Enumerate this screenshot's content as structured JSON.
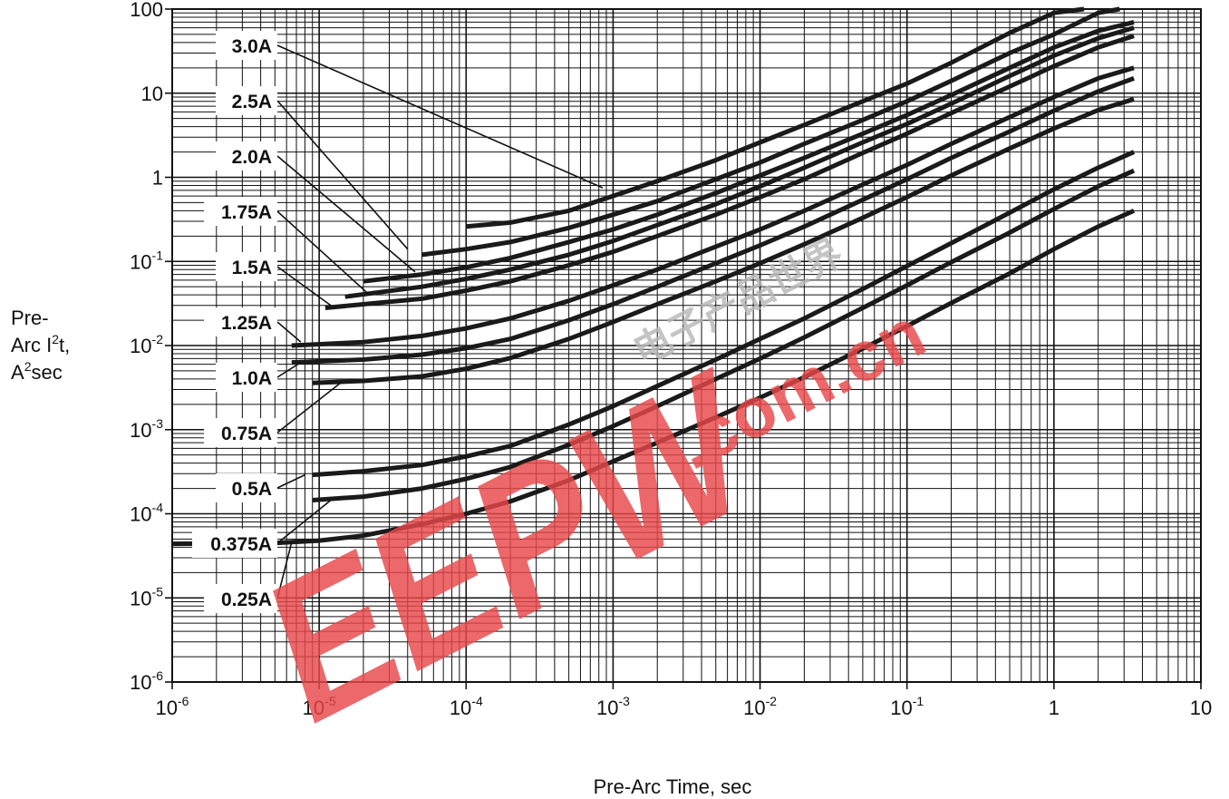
{
  "chart_data": {
    "type": "line",
    "xlabel": "Pre-Arc Time, sec",
    "ylabel_lines": [
      "Pre-",
      "Arc I",
      "2",
      "t,",
      "A",
      "2",
      "sec"
    ],
    "x_scale": "log",
    "y_scale": "log",
    "xlim": [
      1e-06,
      10
    ],
    "ylim": [
      1e-06,
      100
    ],
    "grid": true,
    "x_ticks": [
      {
        "base": "10",
        "exp": "-6",
        "value": 1e-06
      },
      {
        "base": "10",
        "exp": "-5",
        "value": 1e-05
      },
      {
        "base": "10",
        "exp": "-4",
        "value": 0.0001
      },
      {
        "base": "10",
        "exp": "-3",
        "value": 0.001
      },
      {
        "base": "10",
        "exp": "-2",
        "value": 0.01
      },
      {
        "base": "10",
        "exp": "-1",
        "value": 0.1
      },
      {
        "base": "1",
        "exp": "",
        "value": 1
      },
      {
        "base": "10",
        "exp": "",
        "value": 10
      }
    ],
    "y_ticks": [
      {
        "base": "10",
        "exp": "-6",
        "value": 1e-06
      },
      {
        "base": "10",
        "exp": "-5",
        "value": 1e-05
      },
      {
        "base": "10",
        "exp": "-4",
        "value": 0.0001
      },
      {
        "base": "10",
        "exp": "-3",
        "value": 0.001
      },
      {
        "base": "10",
        "exp": "-2",
        "value": 0.01
      },
      {
        "base": "10",
        "exp": "-1",
        "value": 0.1
      },
      {
        "base": "1",
        "exp": "",
        "value": 1
      },
      {
        "base": "10",
        "exp": "",
        "value": 10
      },
      {
        "base": "100",
        "exp": "",
        "value": 100
      }
    ],
    "series": [
      {
        "name": "3.0A",
        "label_anchor": [
          0.00085,
          0.75
        ],
        "x": [
          0.0001,
          0.0002,
          0.0005,
          0.001,
          0.002,
          0.005,
          0.01,
          0.02,
          0.05,
          0.1,
          0.2,
          0.5,
          1,
          1.6
        ],
        "y": [
          0.26,
          0.29,
          0.4,
          0.6,
          0.9,
          1.6,
          2.6,
          4.2,
          8,
          13,
          23,
          52,
          90,
          100
        ]
      },
      {
        "name": "2.5A",
        "label_anchor": [
          4e-05,
          0.14
        ],
        "x": [
          5e-05,
          0.0001,
          0.0002,
          0.0005,
          0.001,
          0.002,
          0.005,
          0.01,
          0.02,
          0.05,
          0.1,
          0.2,
          0.5,
          1,
          2,
          2.8
        ],
        "y": [
          0.12,
          0.14,
          0.17,
          0.25,
          0.36,
          0.52,
          0.95,
          1.5,
          2.5,
          4.8,
          8,
          14,
          30,
          50,
          90,
          100
        ]
      },
      {
        "name": "2.0A",
        "label_anchor": [
          4.5e-05,
          0.075
        ],
        "x": [
          2e-05,
          5e-05,
          0.0001,
          0.0002,
          0.0005,
          0.001,
          0.002,
          0.005,
          0.01,
          0.02,
          0.05,
          0.1,
          0.2,
          0.5,
          1,
          2,
          3.5
        ],
        "y": [
          0.058,
          0.07,
          0.085,
          0.11,
          0.17,
          0.24,
          0.36,
          0.65,
          1.05,
          1.7,
          3.3,
          5.5,
          9.5,
          20,
          35,
          55,
          70
        ]
      },
      {
        "name": "1.75A",
        "label_anchor": [
          2.2e-05,
          0.04
        ],
        "x": [
          1.5e-05,
          5e-05,
          0.0001,
          0.0002,
          0.0005,
          0.001,
          0.002,
          0.005,
          0.01,
          0.02,
          0.05,
          0.1,
          0.2,
          0.5,
          1,
          2,
          3.5
        ],
        "y": [
          0.038,
          0.05,
          0.062,
          0.08,
          0.12,
          0.175,
          0.27,
          0.48,
          0.78,
          1.3,
          2.6,
          4.3,
          7.5,
          16,
          28,
          45,
          60
        ]
      },
      {
        "name": "1.5A",
        "label_anchor": [
          1.2e-05,
          0.03
        ],
        "x": [
          1.1e-05,
          5e-05,
          0.0001,
          0.0002,
          0.0005,
          0.001,
          0.002,
          0.005,
          0.01,
          0.02,
          0.05,
          0.1,
          0.2,
          0.5,
          1,
          2,
          3.5
        ],
        "y": [
          0.028,
          0.036,
          0.045,
          0.058,
          0.09,
          0.13,
          0.2,
          0.36,
          0.58,
          0.95,
          1.95,
          3.3,
          5.8,
          12,
          21,
          35,
          48
        ]
      },
      {
        "name": "1.25A",
        "label_anchor": [
          7.5e-06,
          0.011
        ],
        "x": [
          6.5e-06,
          2e-05,
          5e-05,
          0.0001,
          0.0002,
          0.0005,
          0.001,
          0.002,
          0.005,
          0.01,
          0.02,
          0.05,
          0.1,
          0.2,
          0.5,
          1,
          2,
          3.5
        ],
        "y": [
          0.01,
          0.011,
          0.013,
          0.016,
          0.021,
          0.034,
          0.052,
          0.08,
          0.15,
          0.24,
          0.4,
          0.82,
          1.4,
          2.5,
          5.2,
          9,
          15,
          20
        ]
      },
      {
        "name": "1.0A",
        "label_anchor": [
          7.5e-06,
          0.0063
        ],
        "x": [
          6.5e-06,
          2e-05,
          5e-05,
          0.0001,
          0.0002,
          0.0005,
          0.001,
          0.002,
          0.005,
          0.01,
          0.02,
          0.05,
          0.1,
          0.2,
          0.5,
          1,
          2,
          3.5
        ],
        "y": [
          0.0063,
          0.0068,
          0.0078,
          0.0093,
          0.012,
          0.02,
          0.031,
          0.05,
          0.095,
          0.155,
          0.26,
          0.54,
          0.95,
          1.7,
          3.5,
          6.2,
          10.5,
          15
        ]
      },
      {
        "name": "0.75A",
        "label_anchor": [
          1.4e-05,
          0.0036
        ],
        "x": [
          9e-06,
          2e-05,
          5e-05,
          0.0001,
          0.0002,
          0.0005,
          0.001,
          0.002,
          0.005,
          0.01,
          0.02,
          0.05,
          0.1,
          0.2,
          0.5,
          1,
          2,
          3.5
        ],
        "y": [
          0.0036,
          0.0038,
          0.0043,
          0.0053,
          0.0071,
          0.012,
          0.019,
          0.031,
          0.058,
          0.095,
          0.16,
          0.33,
          0.58,
          1.05,
          2.2,
          3.8,
          6.3,
          8.5
        ]
      },
      {
        "name": "0.5A",
        "label_anchor": [
          8e-06,
          0.00029
        ],
        "x": [
          9e-06,
          2e-05,
          5e-05,
          0.0001,
          0.0002,
          0.0005,
          0.001,
          0.002,
          0.005,
          0.01,
          0.02,
          0.05,
          0.1,
          0.2,
          0.5,
          1,
          2,
          3.5
        ],
        "y": [
          0.00029,
          0.00032,
          0.00038,
          0.00048,
          0.00064,
          0.00115,
          0.0019,
          0.0033,
          0.0068,
          0.012,
          0.021,
          0.047,
          0.088,
          0.165,
          0.38,
          0.72,
          1.3,
          2
        ]
      },
      {
        "name": "0.375A",
        "label_anchor": [
          1.2e-05,
          0.000145
        ],
        "x": [
          9e-06,
          2e-05,
          5e-05,
          0.0001,
          0.0002,
          0.0005,
          0.001,
          0.002,
          0.005,
          0.01,
          0.02,
          0.05,
          0.1,
          0.2,
          0.5,
          1,
          2,
          3.5
        ],
        "y": [
          0.000145,
          0.00016,
          0.0002,
          0.00026,
          0.00036,
          0.00066,
          0.0011,
          0.0019,
          0.004,
          0.007,
          0.0125,
          0.028,
          0.052,
          0.098,
          0.22,
          0.42,
          0.78,
          1.2
        ]
      },
      {
        "name": "0.25A",
        "label_anchor": [
          6.5e-06,
          4.6e-05
        ],
        "x": [
          1e-06,
          5e-06,
          1e-05,
          2e-05,
          5e-05,
          0.0001,
          0.0002,
          0.0005,
          0.001,
          0.002,
          0.005,
          0.01,
          0.02,
          0.05,
          0.1,
          0.2,
          0.5,
          1,
          2,
          3.5
        ],
        "y": [
          4.4e-05,
          4.5e-05,
          4.8e-05,
          5.5e-05,
          7.5e-05,
          0.0001,
          0.00014,
          0.00025,
          0.00042,
          0.0007,
          0.0014,
          0.0024,
          0.0042,
          0.0092,
          0.017,
          0.032,
          0.072,
          0.14,
          0.26,
          0.4
        ]
      }
    ]
  },
  "watermark": {
    "brand": "EEPW",
    "domain": ".com.cn",
    "cjk": "电子产品世界",
    "color": "#e8484a"
  }
}
